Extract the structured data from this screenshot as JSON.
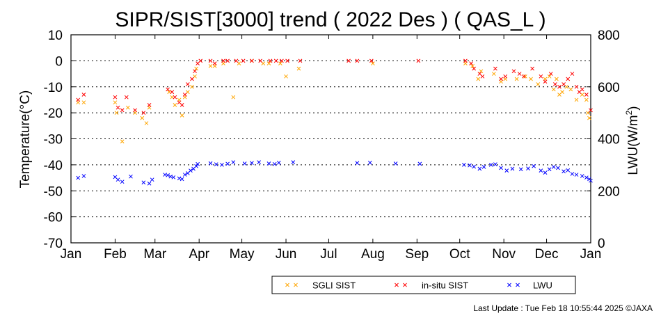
{
  "chart_data": {
    "type": "scatter",
    "title": "SIPR/SIST[3000] trend ( 2022 Des ) ( QAS_L )",
    "ylabel": "Temperature(°C)",
    "y2label_main": "LWU(W/m",
    "y2label_sup": "2",
    "y2label_end": ")",
    "xlabel": "",
    "x_domain": [
      0,
      365
    ],
    "ylim": [
      -70,
      10
    ],
    "y2lim": [
      0,
      800
    ],
    "yticks": [
      10,
      0,
      -10,
      -20,
      -30,
      -40,
      -50,
      -60,
      -70
    ],
    "y2ticks": [
      800,
      600,
      400,
      200,
      0
    ],
    "grid": "horizontal dotted",
    "months": [
      {
        "label": "Jan",
        "day": 0
      },
      {
        "label": "Feb",
        "day": 31
      },
      {
        "label": "Mar",
        "day": 59
      },
      {
        "label": "Apr",
        "day": 90
      },
      {
        "label": "May",
        "day": 120
      },
      {
        "label": "Jun",
        "day": 151
      },
      {
        "label": "Jul",
        "day": 181
      },
      {
        "label": "Aug",
        "day": 212
      },
      {
        "label": "Sep",
        "day": 243
      },
      {
        "label": "Oct",
        "day": 273
      },
      {
        "label": "Nov",
        "day": 304
      },
      {
        "label": "Dec",
        "day": 334
      },
      {
        "label": "Jan",
        "day": 365
      }
    ],
    "series": [
      {
        "name": "SGLI SIST",
        "axis": "left",
        "color": "#ffa500",
        "points": [
          [
            5,
            -16
          ],
          [
            9,
            -16
          ],
          [
            31,
            -16
          ],
          [
            32,
            -20
          ],
          [
            36,
            -31
          ],
          [
            40,
            -18
          ],
          [
            45,
            -20
          ],
          [
            50,
            -22
          ],
          [
            53,
            -24
          ],
          [
            55,
            -18
          ],
          [
            69,
            -12
          ],
          [
            71,
            -14
          ],
          [
            73,
            -17
          ],
          [
            76,
            -15
          ],
          [
            78,
            -21
          ],
          [
            80,
            -14
          ],
          [
            82,
            -12
          ],
          [
            85,
            -10
          ],
          [
            87,
            -6
          ],
          [
            88,
            -3
          ],
          [
            98,
            -2
          ],
          [
            101,
            -2
          ],
          [
            107,
            -1
          ],
          [
            114,
            -14
          ],
          [
            118,
            -1
          ],
          [
            127,
            0
          ],
          [
            135,
            -1
          ],
          [
            139,
            -1
          ],
          [
            147,
            -1
          ],
          [
            151,
            -6
          ],
          [
            160,
            -3
          ],
          [
            212,
            -1
          ],
          [
            277,
            -1
          ],
          [
            282,
            -2
          ],
          [
            286,
            -7
          ],
          [
            288,
            -4
          ],
          [
            297,
            -5
          ],
          [
            302,
            -8
          ],
          [
            305,
            -7
          ],
          [
            313,
            -7
          ],
          [
            319,
            -6
          ],
          [
            323,
            -7
          ],
          [
            328,
            -9
          ],
          [
            333,
            -7
          ],
          [
            336,
            -6
          ],
          [
            339,
            -11
          ],
          [
            341,
            -7
          ],
          [
            343,
            -13
          ],
          [
            345,
            -12
          ],
          [
            348,
            -10
          ],
          [
            351,
            -11
          ],
          [
            355,
            -15
          ],
          [
            359,
            -13
          ],
          [
            362,
            -15
          ],
          [
            363,
            -20
          ],
          [
            364,
            -22
          ]
        ]
      },
      {
        "name": "in-situ SIST",
        "axis": "left",
        "color": "#ff0000",
        "points": [
          [
            5,
            -15
          ],
          [
            9,
            -13
          ],
          [
            31,
            -14
          ],
          [
            33,
            -18
          ],
          [
            36,
            -19
          ],
          [
            39,
            -14
          ],
          [
            45,
            -19
          ],
          [
            51,
            -20
          ],
          [
            55,
            -17
          ],
          [
            68,
            -11
          ],
          [
            71,
            -12
          ],
          [
            73,
            -14
          ],
          [
            76,
            -16
          ],
          [
            78,
            -17
          ],
          [
            80,
            -13
          ],
          [
            82,
            -9
          ],
          [
            85,
            -7
          ],
          [
            87,
            -4
          ],
          [
            89,
            -1
          ],
          [
            91,
            0
          ],
          [
            98,
            0
          ],
          [
            101,
            -1
          ],
          [
            107,
            0
          ],
          [
            110,
            0
          ],
          [
            116,
            0
          ],
          [
            121,
            0
          ],
          [
            127,
            0
          ],
          [
            133,
            0
          ],
          [
            140,
            0
          ],
          [
            144,
            0
          ],
          [
            148,
            0
          ],
          [
            152,
            0
          ],
          [
            161,
            0
          ],
          [
            195,
            0
          ],
          [
            201,
            0
          ],
          [
            211,
            0
          ],
          [
            244,
            0
          ],
          [
            277,
            0
          ],
          [
            281,
            -1
          ],
          [
            283,
            -3
          ],
          [
            287,
            -5
          ],
          [
            289,
            -6
          ],
          [
            298,
            -3
          ],
          [
            302,
            -7
          ],
          [
            305,
            -6
          ],
          [
            311,
            -4
          ],
          [
            315,
            -5
          ],
          [
            318,
            -6
          ],
          [
            324,
            -3
          ],
          [
            330,
            -6
          ],
          [
            333,
            -8
          ],
          [
            337,
            -5
          ],
          [
            340,
            -9
          ],
          [
            343,
            -10
          ],
          [
            346,
            -9
          ],
          [
            349,
            -7
          ],
          [
            352,
            -5
          ],
          [
            355,
            -10
          ],
          [
            357,
            -12
          ],
          [
            359,
            -11
          ],
          [
            362,
            -13
          ],
          [
            365,
            -19
          ]
        ]
      },
      {
        "name": "LWU",
        "axis": "right",
        "color": "#0000ff",
        "points": [
          [
            5,
            250
          ],
          [
            9,
            257
          ],
          [
            31,
            253
          ],
          [
            33,
            243
          ],
          [
            36,
            235
          ],
          [
            42,
            255
          ],
          [
            51,
            232
          ],
          [
            55,
            228
          ],
          [
            57,
            243
          ],
          [
            66,
            262
          ],
          [
            68,
            260
          ],
          [
            70,
            255
          ],
          [
            72,
            252
          ],
          [
            76,
            248
          ],
          [
            78,
            245
          ],
          [
            80,
            262
          ],
          [
            82,
            268
          ],
          [
            84,
            278
          ],
          [
            86,
            285
          ],
          [
            88,
            295
          ],
          [
            89,
            303
          ],
          [
            98,
            306
          ],
          [
            102,
            302
          ],
          [
            106,
            300
          ],
          [
            110,
            304
          ],
          [
            114,
            310
          ],
          [
            122,
            305
          ],
          [
            127,
            307
          ],
          [
            132,
            310
          ],
          [
            139,
            305
          ],
          [
            143,
            303
          ],
          [
            146,
            308
          ],
          [
            156,
            310
          ],
          [
            201,
            307
          ],
          [
            210,
            308
          ],
          [
            228,
            305
          ],
          [
            245,
            304
          ],
          [
            276,
            300
          ],
          [
            280,
            298
          ],
          [
            283,
            293
          ],
          [
            287,
            285
          ],
          [
            290,
            292
          ],
          [
            295,
            300
          ],
          [
            298,
            302
          ],
          [
            302,
            288
          ],
          [
            306,
            278
          ],
          [
            310,
            285
          ],
          [
            316,
            283
          ],
          [
            321,
            286
          ],
          [
            325,
            295
          ],
          [
            330,
            278
          ],
          [
            333,
            270
          ],
          [
            336,
            283
          ],
          [
            339,
            292
          ],
          [
            342,
            288
          ],
          [
            346,
            275
          ],
          [
            349,
            279
          ],
          [
            352,
            265
          ],
          [
            355,
            262
          ],
          [
            359,
            257
          ],
          [
            362,
            251
          ],
          [
            364,
            245
          ],
          [
            365,
            239
          ]
        ]
      }
    ],
    "legend_position": "bottom-right, below plot"
  },
  "footer": {
    "last_update": "Last Update : Tue Feb 18 10:55:44 2025  ©JAXA"
  }
}
